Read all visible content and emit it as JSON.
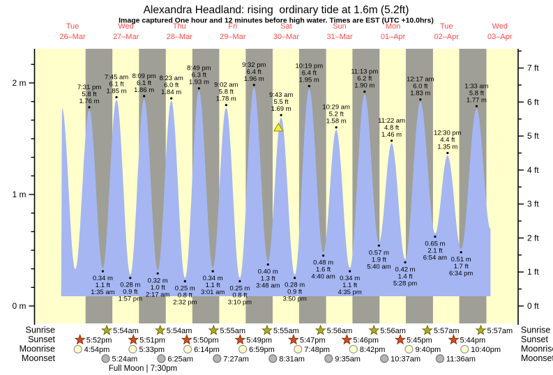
{
  "header": {
    "title": "Alexandra Headland: rising  ordinary tide at 1.6m (5.2ft)",
    "subtitle": "Image captured One hour and 12 minutes before high water. Times are EST (UTC +10.0hrs)"
  },
  "days": [
    {
      "weekday": "Tue",
      "date": "26–Mar"
    },
    {
      "weekday": "Wed",
      "date": "27–Mar"
    },
    {
      "weekday": "Thu",
      "date": "28–Mar"
    },
    {
      "weekday": "Fri",
      "date": "29–Mar"
    },
    {
      "weekday": "Sat",
      "date": "30–Mar"
    },
    {
      "weekday": "Sun",
      "date": "31–Mar"
    },
    {
      "weekday": "Mon",
      "date": "01–Apr"
    },
    {
      "weekday": "Tue",
      "date": "02–Apr"
    },
    {
      "weekday": "Wed",
      "date": "03–Apr"
    }
  ],
  "axes": {
    "left_unit": "m",
    "left_labels": [
      "0 m",
      "1 m",
      "2 m"
    ],
    "right_unit": "ft",
    "right_labels": [
      "0 ft",
      "1 ft",
      "2 ft",
      "3 ft",
      "4 ft",
      "5 ft",
      "6 ft",
      "7 ft"
    ]
  },
  "chart_data": {
    "type": "area",
    "title": "Alexandra Headland: rising  ordinary tide at 1.6m (5.2ft)",
    "ylabel_left": "height (m)",
    "ylabel_right": "height (ft)",
    "ylim_m": [
      0,
      2.3
    ],
    "current_tide": {
      "level_m": 1.6,
      "level_ft": 5.2,
      "state": "rising"
    },
    "capture_marker": {
      "day": 4,
      "hour": 8.52,
      "level_m": 1.6
    },
    "curve": [
      {
        "type": "edge",
        "day": 0,
        "hour": 6.85,
        "value": 0.09
      },
      {
        "type": "H",
        "day": 0,
        "hour": 7.3,
        "value": 1.77,
        "labeled": false
      },
      {
        "type": "L",
        "day": 0,
        "hour": 13.2,
        "value": 0.33,
        "labeled": false
      },
      {
        "type": "H",
        "day": 0,
        "time": "7:31 pm",
        "ft": "5.8 ft",
        "m": "1.76 m"
      },
      {
        "type": "L",
        "day": 1,
        "time": "1:35 am",
        "ft": "1.1 ft",
        "m": "0.34 m"
      },
      {
        "type": "H",
        "day": 1,
        "time": "7:45 am",
        "ft": "6.1 ft",
        "m": "1.85 m"
      },
      {
        "type": "L",
        "day": 1,
        "time": "1:57 pm",
        "ft": "0.9 ft",
        "m": "0.28 m"
      },
      {
        "type": "H",
        "day": 1,
        "time": "8:09 pm",
        "ft": "6.1 ft",
        "m": "1.86 m"
      },
      {
        "type": "L",
        "day": 2,
        "time": "2:17 am",
        "ft": "1.0 ft",
        "m": "0.32 m"
      },
      {
        "type": "H",
        "day": 2,
        "time": "8:23 am",
        "ft": "6.0 ft",
        "m": "1.84 m"
      },
      {
        "type": "L",
        "day": 2,
        "time": "2:32 pm",
        "ft": "0.8 ft",
        "m": "0.25 m"
      },
      {
        "type": "H",
        "day": 2,
        "time": "8:49 pm",
        "ft": "6.3 ft",
        "m": "1.93 m"
      },
      {
        "type": "L",
        "day": 3,
        "time": "3:01 am",
        "ft": "1.1 ft",
        "m": "0.34 m"
      },
      {
        "type": "H",
        "day": 3,
        "time": "9:02 am",
        "ft": "5.8 ft",
        "m": "1.78 m"
      },
      {
        "type": "L",
        "day": 3,
        "time": "3:10 pm",
        "ft": "0.8 ft",
        "m": "0.25 m"
      },
      {
        "type": "H",
        "day": 3,
        "time": "9:32 pm",
        "ft": "6.4 ft",
        "m": "1.96 m"
      },
      {
        "type": "L",
        "day": 4,
        "time": "3:48 am",
        "ft": "1.3 ft",
        "m": "0.40 m"
      },
      {
        "type": "H",
        "day": 4,
        "time": "9:43 am",
        "ft": "5.5 ft",
        "m": "1.69 m",
        "capture": true
      },
      {
        "type": "L",
        "day": 4,
        "time": "3:50 pm",
        "ft": "0.9 ft",
        "m": "0.28 m"
      },
      {
        "type": "H",
        "day": 4,
        "time": "10:19 pm",
        "ft": "6.4 ft",
        "m": "1.95 m"
      },
      {
        "type": "L",
        "day": 5,
        "time": "4:40 am",
        "ft": "1.6 ft",
        "m": "0.48 m"
      },
      {
        "type": "H",
        "day": 5,
        "time": "10:29 am",
        "ft": "5.2 ft",
        "m": "1.58 m"
      },
      {
        "type": "L",
        "day": 5,
        "time": "4:35 pm",
        "ft": "1.1 ft",
        "m": "0.34 m"
      },
      {
        "type": "H",
        "day": 5,
        "time": "11:13 pm",
        "ft": "6.2 ft",
        "m": "1.90 m"
      },
      {
        "type": "L",
        "day": 6,
        "time": "5:40 am",
        "ft": "1.9 ft",
        "m": "0.57 m"
      },
      {
        "type": "H",
        "day": 6,
        "time": "11:22 am",
        "ft": "4.8 ft",
        "m": "1.46 m"
      },
      {
        "type": "L",
        "day": 6,
        "time": "5:28 pm",
        "ft": "1.4 ft",
        "m": "0.42 m"
      },
      {
        "type": "H",
        "day": 7,
        "time": "12:17 am",
        "ft": "6.0 ft",
        "m": "1.83 m"
      },
      {
        "type": "L",
        "day": 7,
        "time": "6:54 am",
        "ft": "2.1 ft",
        "m": "0.65 m"
      },
      {
        "type": "H",
        "day": 7,
        "time": "12:30 pm",
        "ft": "4.4 ft",
        "m": "1.35 m"
      },
      {
        "type": "L",
        "day": 7,
        "time": "6:34 pm",
        "ft": "1.7 ft",
        "m": "0.51 m"
      },
      {
        "type": "H",
        "day": 8,
        "time": "1:33 am",
        "ft": "5.8 ft",
        "m": "1.77 m"
      },
      {
        "type": "edge",
        "day": 8,
        "hour": 7.8,
        "value": 0.69
      }
    ]
  },
  "almanac": {
    "row_labels": [
      "Sunrise",
      "Sunset",
      "Moonrise",
      "Moonset"
    ],
    "sunrise": [
      {
        "day": 1,
        "time": "5:54am"
      },
      {
        "day": 2,
        "time": "5:54am"
      },
      {
        "day": 3,
        "time": "5:55am"
      },
      {
        "day": 4,
        "time": "5:55am"
      },
      {
        "day": 5,
        "time": "5:56am"
      },
      {
        "day": 6,
        "time": "5:56am"
      },
      {
        "day": 7,
        "time": "5:57am"
      },
      {
        "day": 8,
        "time": "5:57am"
      }
    ],
    "sunset": [
      {
        "day": 0,
        "time": "5:52pm"
      },
      {
        "day": 1,
        "time": "5:51pm"
      },
      {
        "day": 2,
        "time": "5:50pm"
      },
      {
        "day": 3,
        "time": "5:49pm"
      },
      {
        "day": 4,
        "time": "5:47pm"
      },
      {
        "day": 5,
        "time": "5:46pm"
      },
      {
        "day": 6,
        "time": "5:45pm"
      },
      {
        "day": 7,
        "time": "5:44pm"
      }
    ],
    "moonrise": [
      {
        "day": 0,
        "time": "4:54pm"
      },
      {
        "day": 1,
        "time": "5:33pm"
      },
      {
        "day": 2,
        "time": "6:14pm"
      },
      {
        "day": 3,
        "time": "6:59pm"
      },
      {
        "day": 4,
        "time": "7:48pm"
      },
      {
        "day": 5,
        "time": "8:42pm"
      },
      {
        "day": 6,
        "time": "9:40pm"
      },
      {
        "day": 7,
        "time": "10:40pm"
      }
    ],
    "moonset": [
      {
        "day": 1,
        "time": "5:24am"
      },
      {
        "day": 2,
        "time": "6:25am"
      },
      {
        "day": 3,
        "time": "7:27am"
      },
      {
        "day": 4,
        "time": "8:31am"
      },
      {
        "day": 5,
        "time": "9:35am"
      },
      {
        "day": 6,
        "time": "10:37am"
      },
      {
        "day": 7,
        "time": "11:36am"
      }
    ],
    "full_moon": "Full Moon | 7:30pm"
  },
  "colors": {
    "day_band": "#ffffcc",
    "night_band": "#9f9f97",
    "tide_fill": "#a5b6f2",
    "date_red": "#ff4a4a",
    "text": "#000000",
    "sunrise_star_fill": "#b2aa2d",
    "sunrise_star_stroke": "#6f6a00",
    "sunset_star_fill": "#cc5026",
    "sunset_star_stroke": "#8f2e08",
    "moonrise_fill": "#ffffcc",
    "moonrise_stroke": "#9a9a9a",
    "moonset_fill": "#b5b5b5",
    "moonset_stroke": "#777777",
    "marker_fill": "#f2ef3d",
    "marker_stroke": "#8f8f00"
  }
}
